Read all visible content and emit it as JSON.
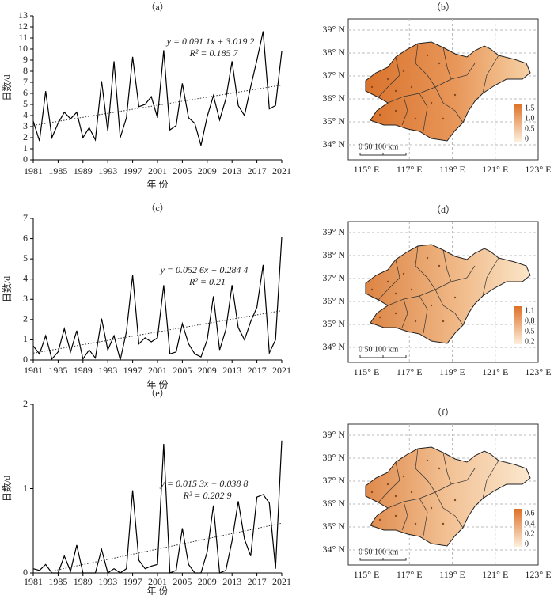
{
  "chart_data": [
    {
      "type": "line",
      "title": "（a）",
      "x_label": "年 份",
      "y_label": "日数/d",
      "x": [
        1981,
        1982,
        1983,
        1984,
        1985,
        1986,
        1987,
        1988,
        1989,
        1990,
        1991,
        1992,
        1993,
        1994,
        1995,
        1996,
        1997,
        1998,
        1999,
        2000,
        2001,
        2002,
        2003,
        2004,
        2005,
        2006,
        2007,
        2008,
        2009,
        2010,
        2011,
        2012,
        2013,
        2014,
        2015,
        2016,
        2017,
        2018,
        2019,
        2020,
        2021
      ],
      "values": [
        3.5,
        1.7,
        6.2,
        2.0,
        3.3,
        4.3,
        3.7,
        4.3,
        2.0,
        2.9,
        1.8,
        7.1,
        2.6,
        8.9,
        2.0,
        3.8,
        9.3,
        4.8,
        5.0,
        5.7,
        3.8,
        9.9,
        2.7,
        3.1,
        6.9,
        3.8,
        3.3,
        1.3,
        3.9,
        5.8,
        3.6,
        5.5,
        8.9,
        4.9,
        4.0,
        6.6,
        9.0,
        11.6,
        4.6,
        4.9,
        9.8
      ],
      "color": "#000000",
      "trendline": {
        "x": [
          1981,
          2021
        ],
        "values": [
          3.11,
          6.75
        ]
      },
      "annotations": [
        "y = 0.091 1x + 3.019 2",
        "R² = 0.185 7"
      ],
      "xlim": [
        1981,
        2021
      ],
      "xticks": [
        1981,
        1985,
        1989,
        1993,
        1997,
        2001,
        2005,
        2009,
        2013,
        2017,
        2021
      ],
      "ylim": [
        0,
        13
      ],
      "yticks": [
        0,
        1,
        2,
        3,
        4,
        5,
        6,
        7,
        8,
        9,
        10,
        11,
        12,
        13
      ]
    },
    {
      "type": "line",
      "title": "（c）",
      "x_label": "年 份",
      "y_label": "日数/d",
      "x": [
        1981,
        1982,
        1983,
        1984,
        1985,
        1986,
        1987,
        1988,
        1989,
        1990,
        1991,
        1992,
        1993,
        1994,
        1995,
        1996,
        1997,
        1998,
        1999,
        2000,
        2001,
        2002,
        2003,
        2004,
        2005,
        2006,
        2007,
        2008,
        2009,
        2010,
        2011,
        2012,
        2013,
        2014,
        2015,
        2016,
        2017,
        2018,
        2019,
        2020,
        2021
      ],
      "values": [
        0.7,
        0.3,
        1.2,
        0.05,
        0.4,
        1.55,
        0.4,
        1.45,
        0.05,
        0.5,
        0.1,
        2.05,
        0.5,
        1.2,
        0.0,
        1.4,
        4.2,
        0.8,
        1.1,
        0.9,
        1.1,
        3.7,
        0.3,
        0.4,
        1.8,
        0.8,
        0.3,
        0.15,
        1.0,
        3.15,
        0.5,
        1.5,
        3.7,
        1.6,
        1.0,
        1.9,
        2.6,
        4.7,
        0.35,
        1.0,
        6.1
      ],
      "color": "#000000",
      "trendline": {
        "x": [
          1981,
          2021
        ],
        "values": [
          0.34,
          2.44
        ]
      },
      "annotations": [
        "y = 0.052 6x + 0.284 4",
        "R² = 0.21"
      ],
      "xlim": [
        1981,
        2021
      ],
      "xticks": [
        1981,
        1985,
        1989,
        1993,
        1997,
        2001,
        2005,
        2009,
        2013,
        2017,
        2021
      ],
      "ylim": [
        0,
        7
      ],
      "yticks": [
        0,
        1,
        2,
        3,
        4,
        5,
        6,
        7
      ]
    },
    {
      "type": "line",
      "title": "（e）",
      "x_label": "年 份",
      "y_label": "日数/d",
      "x": [
        1981,
        1982,
        1983,
        1984,
        1985,
        1986,
        1987,
        1988,
        1989,
        1990,
        1991,
        1992,
        1993,
        1994,
        1995,
        1996,
        1997,
        1998,
        1999,
        2000,
        2001,
        2002,
        2003,
        2004,
        2005,
        2006,
        2007,
        2008,
        2009,
        2010,
        2011,
        2012,
        2013,
        2014,
        2015,
        2016,
        2017,
        2018,
        2019,
        2020,
        2021
      ],
      "values": [
        0.05,
        0.03,
        0.1,
        0.0,
        0.0,
        0.2,
        0.02,
        0.33,
        0.0,
        0.0,
        0.0,
        0.28,
        0.0,
        0.05,
        0.0,
        0.05,
        0.98,
        0.15,
        0.05,
        0.08,
        0.1,
        1.53,
        0.0,
        0.03,
        0.53,
        0.1,
        0.0,
        0.0,
        0.25,
        0.8,
        0.0,
        0.03,
        0.38,
        0.85,
        0.4,
        0.2,
        0.9,
        0.93,
        0.83,
        0.05,
        1.57
      ],
      "color": "#000000",
      "trendline": {
        "x": [
          1984,
          2021
        ],
        "values": [
          0.022,
          0.589
        ]
      },
      "annotations": [
        "y = 0.015 3x − 0.038 8",
        "R² = 0.202 9"
      ],
      "xlim": [
        1981,
        2021
      ],
      "xticks": [
        1981,
        1985,
        1989,
        1993,
        1997,
        2001,
        2005,
        2009,
        2013,
        2017,
        2021
      ],
      "ylim": [
        0,
        2
      ],
      "yticks": [
        0,
        1,
        2
      ]
    }
  ],
  "maps": [
    {
      "title": "（b）",
      "lat_labels": [
        "39° N",
        "38° N",
        "37° N",
        "36° N",
        "35° N",
        "34° N"
      ],
      "lon_labels": [
        "115° E",
        "117° E",
        "119° E",
        "121° E",
        "123° E"
      ],
      "legend_labels": [
        "1.5",
        "1.0",
        "0.5",
        "0"
      ],
      "scale_label": "0  50 100 km"
    },
    {
      "title": "（d）",
      "lat_labels": [
        "39° N",
        "38° N",
        "37° N",
        "36° N",
        "35° N",
        "34° N"
      ],
      "lon_labels": [
        "115° E",
        "117° E",
        "119° E",
        "121° E",
        "123° E"
      ],
      "legend_labels": [
        "1.1",
        "0.8",
        "0.5",
        "0.2"
      ],
      "scale_label": "0  50 100 km"
    },
    {
      "title": "（f）",
      "lat_labels": [
        "39° N",
        "38° N",
        "37° N",
        "36° N",
        "35° N",
        "34° N"
      ],
      "lon_labels": [
        "115° E",
        "117° E",
        "119° E",
        "121° E",
        "123° E"
      ],
      "legend_labels": [
        "0.6",
        "0.4",
        "0.2",
        "0"
      ],
      "scale_label": "0  50 100 km"
    }
  ]
}
